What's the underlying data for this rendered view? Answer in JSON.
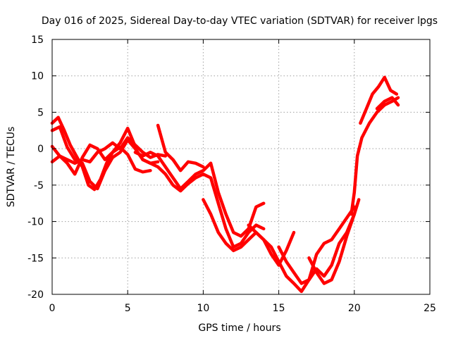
{
  "chart_data": {
    "type": "line",
    "title": "Day 016 of 2025, Sidereal Day-to-day VTEC variation (SDTVAR) for receiver lpgs",
    "xlabel": "GPS time / hours",
    "ylabel": "SDTVAR / TECUs",
    "xlim": [
      0,
      25
    ],
    "ylim": [
      -20,
      15
    ],
    "xticks": [
      0,
      5,
      10,
      15,
      20,
      25
    ],
    "yticks": [
      -20,
      -15,
      -10,
      -5,
      0,
      5,
      10,
      15
    ],
    "grid": true,
    "series_color": "#ff0000",
    "series": [
      {
        "name": "trace-1",
        "x": [
          0.0,
          0.4,
          0.8,
          1.2,
          1.6,
          2.0,
          2.4,
          2.8,
          3.2,
          3.6,
          4.0,
          4.5,
          5.0,
          5.5
        ],
        "y": [
          3.5,
          4.3,
          2.5,
          0.5,
          -1.0,
          -2.5,
          -5.0,
          -5.6,
          -4.2,
          -2.0,
          -0.5,
          0.8,
          2.8,
          0.3
        ]
      },
      {
        "name": "trace-2",
        "x": [
          0.0,
          0.5,
          1.0,
          1.5,
          2.0,
          2.5,
          3.0,
          3.5,
          4.0,
          4.5,
          5.0,
          5.5,
          6.0,
          6.5,
          7.0
        ],
        "y": [
          2.5,
          3.0,
          0.2,
          -1.5,
          -2.0,
          -4.5,
          -5.5,
          -3.0,
          -1.2,
          -0.5,
          1.2,
          0.0,
          -1.5,
          -2.0,
          -1.8
        ]
      },
      {
        "name": "trace-3",
        "x": [
          0.0,
          0.5,
          1.0,
          1.5,
          2.0,
          2.5,
          3.0,
          3.5,
          4.0,
          4.5,
          5.0,
          5.5,
          6.0,
          6.5
        ],
        "y": [
          0.3,
          -1.0,
          -2.0,
          -3.5,
          -1.2,
          0.5,
          0.0,
          -1.5,
          -0.5,
          0.2,
          -0.8,
          -2.8,
          -3.2,
          -3.0
        ]
      },
      {
        "name": "trace-4",
        "x": [
          0.0,
          0.5,
          1.0,
          1.5,
          2.0,
          2.5,
          3.0,
          3.5,
          4.0,
          4.5,
          5.0,
          5.5,
          6.0,
          6.5,
          7.0,
          7.5
        ],
        "y": [
          -1.8,
          -1.0,
          -1.5,
          -2.0,
          -1.5,
          -1.8,
          -0.5,
          0.0,
          0.8,
          0.0,
          1.5,
          0.5,
          -0.5,
          -1.2,
          -0.8,
          -1.0
        ]
      },
      {
        "name": "trace-5",
        "x": [
          7.0,
          7.5,
          8.0,
          8.5,
          9.0,
          9.5,
          10.0
        ],
        "y": [
          3.2,
          -0.5,
          -1.5,
          -3.0,
          -1.8,
          -2.0,
          -2.5
        ]
      },
      {
        "name": "trace-6",
        "x": [
          5.5,
          6.0,
          6.5,
          7.0,
          7.5,
          8.0,
          8.5,
          9.0,
          9.5,
          10.0,
          10.5,
          11.0,
          11.5,
          12.0,
          12.5,
          13.0,
          13.5,
          14.0
        ],
        "y": [
          -0.5,
          -1.0,
          -0.5,
          -1.0,
          -2.5,
          -4.0,
          -5.5,
          -4.5,
          -3.5,
          -3.0,
          -2.0,
          -6.0,
          -9.0,
          -11.5,
          -12.0,
          -11.0,
          -8.0,
          -7.5
        ]
      },
      {
        "name": "trace-7",
        "x": [
          6.0,
          6.5,
          7.0,
          7.5,
          8.0,
          8.5,
          9.0,
          9.5,
          10.0,
          10.5,
          11.0,
          11.5,
          12.0,
          12.5,
          13.0,
          13.5,
          14.0
        ],
        "y": [
          -1.5,
          -2.0,
          -2.5,
          -3.5,
          -5.0,
          -5.8,
          -4.8,
          -4.0,
          -3.5,
          -4.0,
          -7.5,
          -11.0,
          -13.5,
          -13.0,
          -11.5,
          -10.5,
          -11.0
        ]
      },
      {
        "name": "trace-8",
        "x": [
          10.0,
          10.5,
          11.0,
          11.5,
          12.0,
          12.5,
          13.0,
          13.5,
          14.0,
          14.5,
          15.0,
          15.5,
          16.0
        ],
        "y": [
          -7.0,
          -9.0,
          -11.5,
          -13.0,
          -14.0,
          -13.5,
          -12.5,
          -11.5,
          -12.5,
          -14.5,
          -16.0,
          -14.0,
          -11.5
        ]
      },
      {
        "name": "trace-9",
        "x": [
          13.0,
          13.5,
          14.0,
          14.5,
          15.0,
          15.5,
          16.0,
          16.5,
          17.0,
          17.5,
          18.0,
          18.5,
          19.0,
          19.5,
          20.0
        ],
        "y": [
          -10.5,
          -11.5,
          -12.5,
          -13.5,
          -15.5,
          -17.5,
          -18.5,
          -19.6,
          -18.0,
          -14.5,
          -13.0,
          -12.5,
          -11.0,
          -9.5,
          -8.0
        ]
      },
      {
        "name": "trace-10",
        "x": [
          15.0,
          15.5,
          16.0,
          16.5,
          17.0,
          17.5,
          18.0,
          18.5,
          19.0,
          19.5,
          20.0
        ],
        "y": [
          -13.5,
          -15.5,
          -17.0,
          -18.5,
          -18.0,
          -16.5,
          -17.5,
          -16.0,
          -13.0,
          -11.5,
          -9.0
        ]
      },
      {
        "name": "trace-11",
        "x": [
          17.0,
          17.5,
          18.0,
          18.5,
          19.0,
          19.5,
          20.0,
          20.3
        ],
        "y": [
          -15.0,
          -17.0,
          -18.5,
          -18.0,
          -15.5,
          -12.0,
          -9.0,
          -7.0
        ]
      },
      {
        "name": "trace-12",
        "x": [
          19.8,
          20.0,
          20.2,
          20.5,
          21.0,
          21.5,
          22.0,
          22.5,
          22.9
        ],
        "y": [
          -9.0,
          -6.0,
          -1.0,
          1.5,
          3.5,
          5.0,
          6.0,
          6.5,
          7.0
        ]
      },
      {
        "name": "trace-13",
        "x": [
          20.4,
          20.8,
          21.2,
          21.6,
          22.0,
          22.4,
          22.8
        ],
        "y": [
          3.5,
          5.5,
          7.5,
          8.5,
          9.8,
          8.0,
          7.5
        ]
      },
      {
        "name": "trace-14",
        "x": [
          21.5,
          22.0,
          22.5,
          22.9
        ],
        "y": [
          5.5,
          6.5,
          7.0,
          6.0
        ]
      }
    ]
  }
}
